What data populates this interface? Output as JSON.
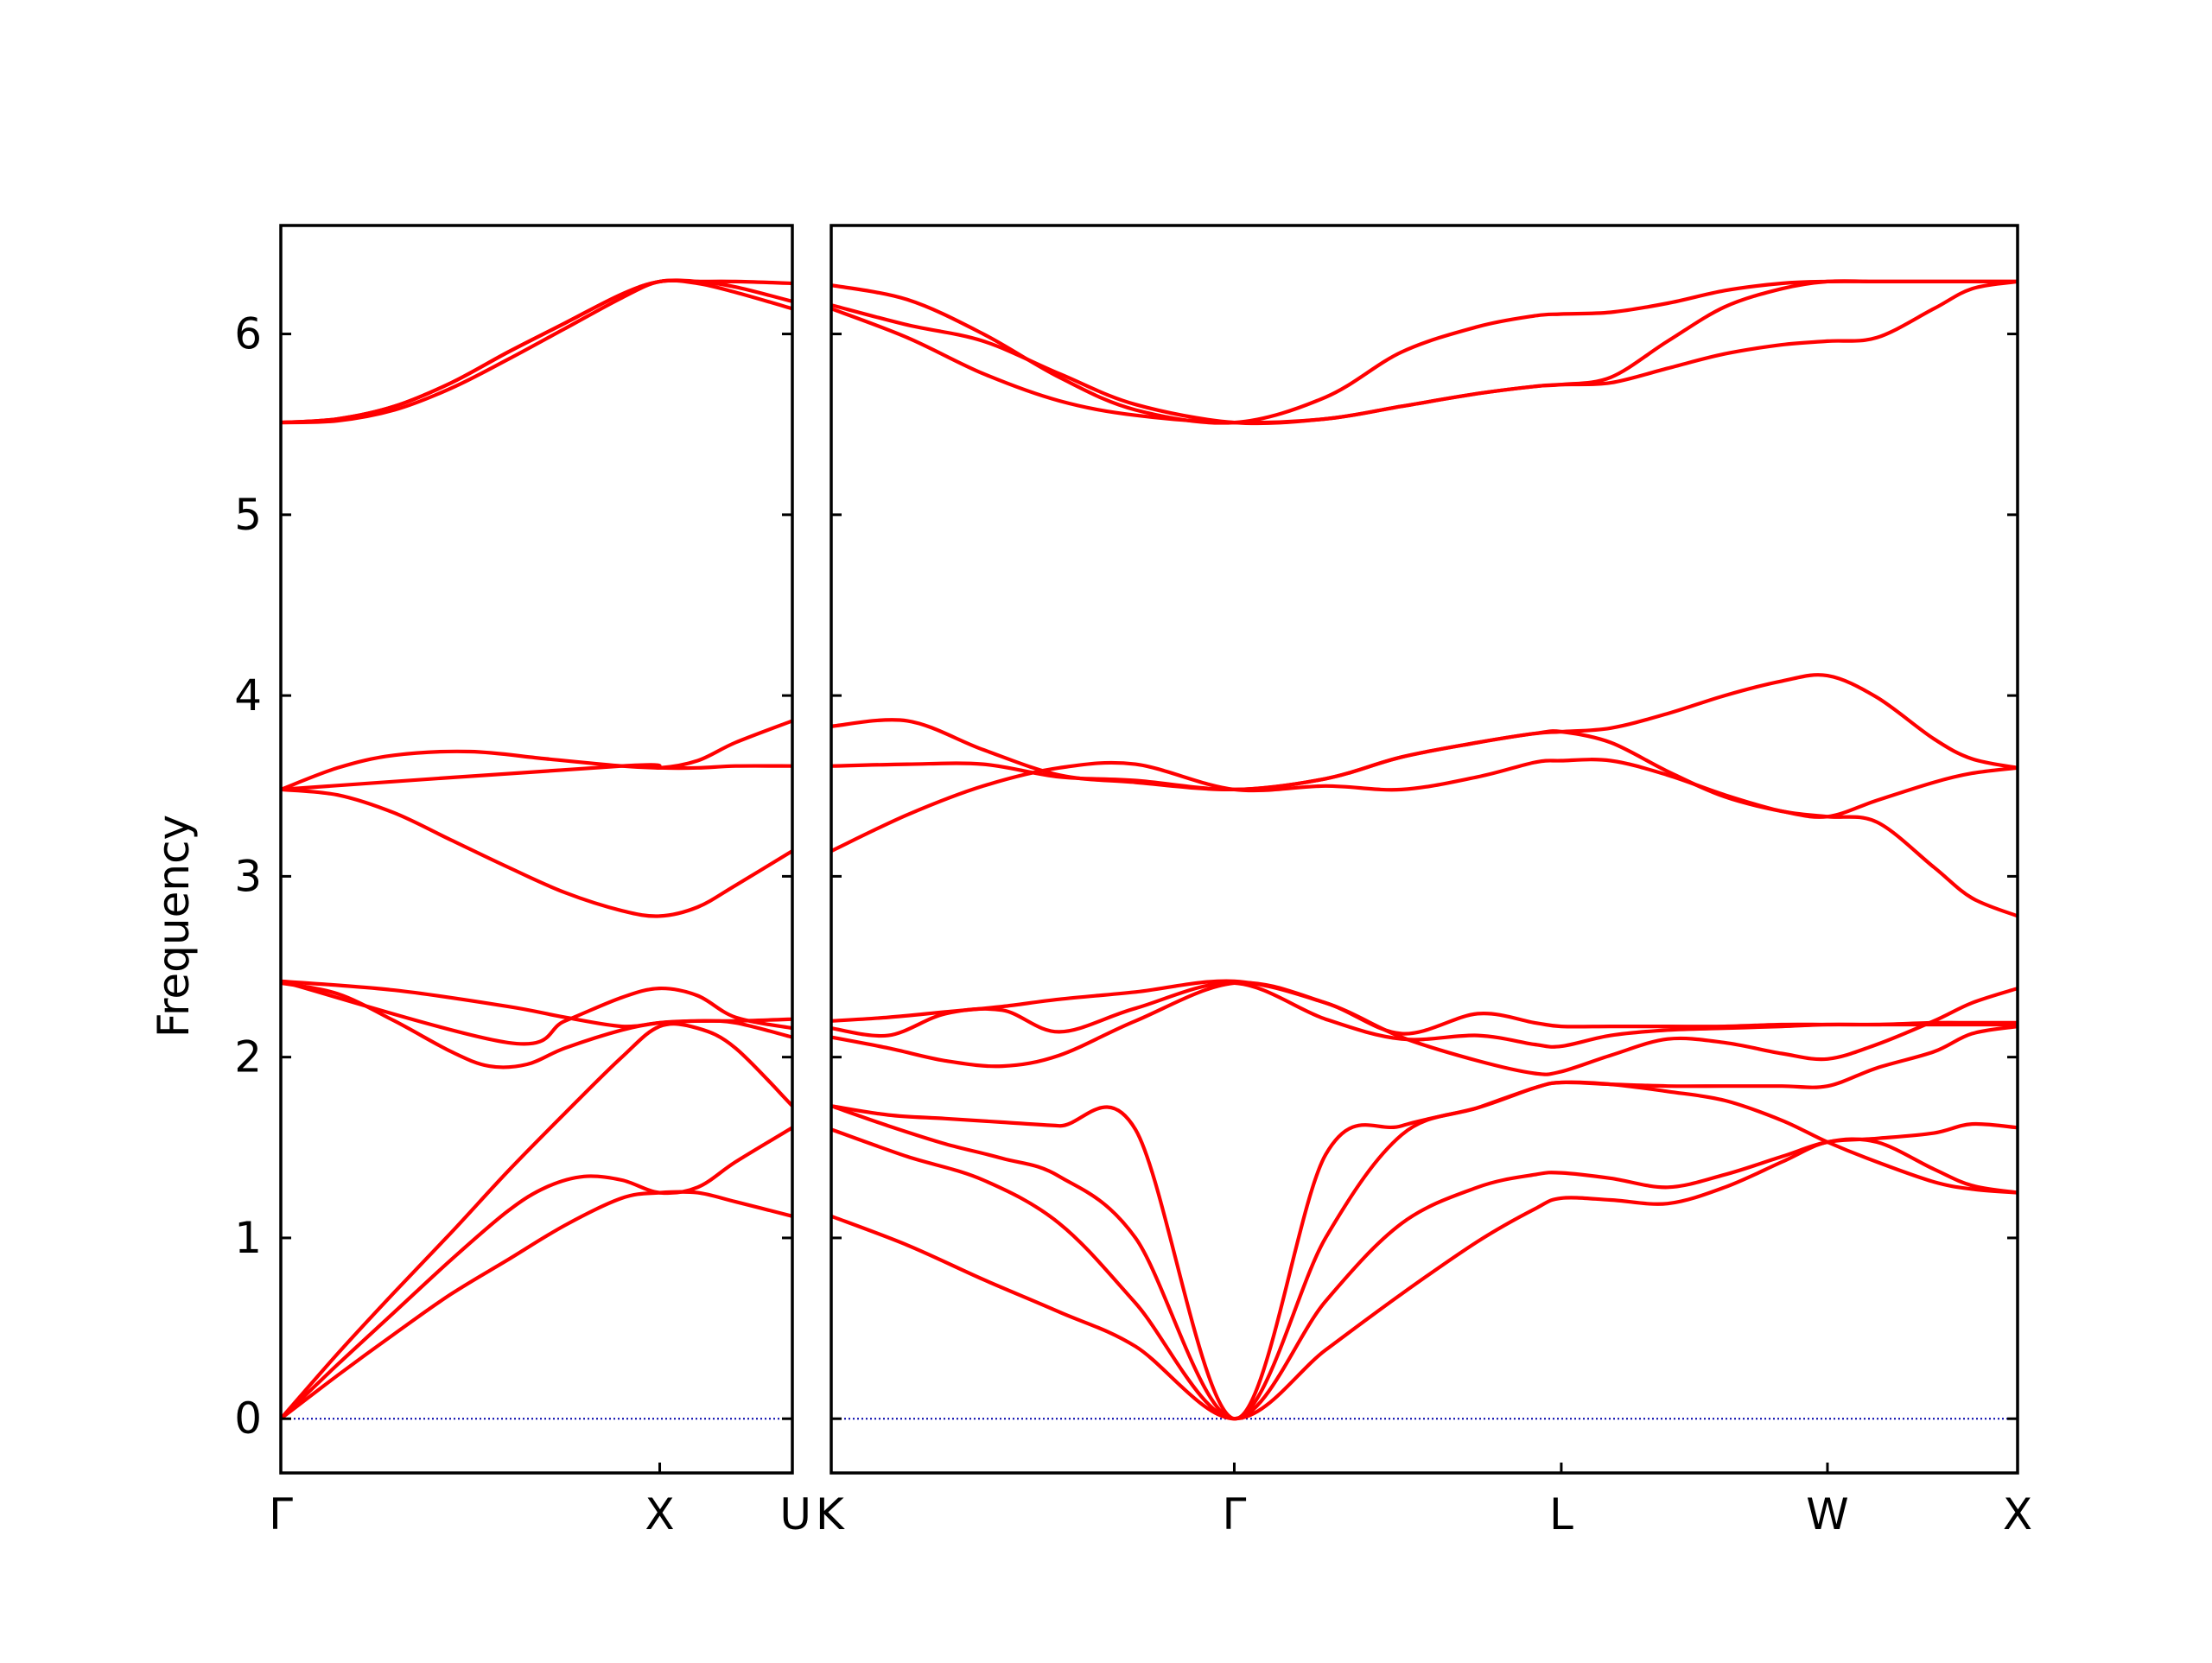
{
  "chart_data": {
    "type": "line",
    "title": "",
    "xlabel": "",
    "ylabel": "Frequency",
    "ylim": [
      -0.3,
      6.6
    ],
    "yticks": [
      0,
      1,
      2,
      3,
      4,
      5,
      6
    ],
    "grid": false,
    "line_color": "#ff0000",
    "zero_line_color": "#0000aa",
    "panels": [
      {
        "name": "Γ-X-U",
        "xlim": [
          0,
          1.35
        ],
        "x_ticks": [
          {
            "x": 0,
            "label": "Γ"
          },
          {
            "x": 1.0,
            "label": "X"
          },
          {
            "x": 1.35,
            "label": "U"
          }
        ],
        "bands": [
          {
            "x": [
              0,
              0.15,
              0.3,
              0.45,
              0.6,
              0.75,
              0.9,
              1.0,
              1.1,
              1.2,
              1.35
            ],
            "y": [
              0,
              0.24,
              0.47,
              0.69,
              0.88,
              1.07,
              1.22,
              1.25,
              1.25,
              1.2,
              1.12
            ]
          },
          {
            "x": [
              0,
              0.15,
              0.3,
              0.45,
              0.6,
              0.7,
              0.8,
              0.9,
              1.0,
              1.1,
              1.2,
              1.35
            ],
            "y": [
              0,
              0.3,
              0.59,
              0.88,
              1.15,
              1.28,
              1.34,
              1.32,
              1.25,
              1.28,
              1.42,
              1.61
            ]
          },
          {
            "x": [
              0,
              0.15,
              0.3,
              0.45,
              0.6,
              0.75,
              0.9,
              1.0,
              1.1,
              1.2,
              1.35
            ],
            "y": [
              0,
              0.36,
              0.7,
              1.03,
              1.37,
              1.69,
              2.0,
              2.17,
              2.16,
              2.05,
              1.73
            ]
          },
          {
            "x": [
              0,
              0.15,
              0.3,
              0.45,
              0.55,
              0.65,
              0.75,
              0.9,
              1.0,
              1.1,
              1.2,
              1.35
            ],
            "y": [
              2.41,
              2.35,
              2.2,
              2.03,
              1.95,
              1.96,
              2.05,
              2.15,
              2.19,
              2.2,
              2.2,
              2.21
            ]
          },
          {
            "x": [
              0,
              0.3,
              0.6,
              0.75,
              0.9,
              1.0,
              1.1,
              1.2,
              1.35
            ],
            "y": [
              2.42,
              2.37,
              2.28,
              2.22,
              2.17,
              2.19,
              2.2,
              2.19,
              2.11
            ]
          },
          {
            "x": [
              0,
              0.6,
              0.75,
              0.9,
              1.0,
              1.1,
              1.2,
              1.35
            ],
            "y": [
              2.42,
              2.08,
              2.2,
              2.33,
              2.38,
              2.34,
              2.22,
              2.16
            ]
          },
          {
            "x": [
              0,
              0.15,
              0.3,
              0.45,
              0.6,
              0.75,
              0.9,
              1.0,
              1.1,
              1.2,
              1.35
            ],
            "y": [
              3.48,
              3.45,
              3.35,
              3.2,
              3.05,
              2.91,
              2.81,
              2.78,
              2.83,
              2.95,
              3.14
            ]
          },
          {
            "x": [
              0,
              0.15,
              0.3,
              0.5,
              0.7,
              0.9,
              1.0,
              1.1,
              1.2,
              1.35
            ],
            "y": [
              3.48,
              3.6,
              3.67,
              3.69,
              3.65,
              3.61,
              3.6,
              3.6,
              3.61,
              3.61
            ]
          },
          {
            "x": [
              0,
              0.9,
              1.0,
              1.1,
              1.2,
              1.35
            ],
            "y": [
              3.48,
              3.61,
              3.6,
              3.64,
              3.74,
              3.86
            ]
          },
          {
            "x": [
              0,
              0.15,
              0.3,
              0.45,
              0.6,
              0.75,
              0.9,
              1.0,
              1.1,
              1.2,
              1.35
            ],
            "y": [
              5.51,
              5.52,
              5.58,
              5.7,
              5.86,
              6.03,
              6.2,
              6.29,
              6.28,
              6.23,
              6.14
            ]
          },
          {
            "x": [
              0,
              0.15,
              0.3,
              0.45,
              0.6,
              0.75,
              0.9,
              1.0,
              1.1,
              1.2,
              1.35
            ],
            "y": [
              5.51,
              5.53,
              5.6,
              5.73,
              5.9,
              6.06,
              6.22,
              6.29,
              6.29,
              6.26,
              6.18
            ]
          },
          {
            "x": [
              0,
              0.15,
              0.3,
              0.45,
              0.6,
              0.75,
              0.9,
              1.0,
              1.1,
              1.2,
              1.35
            ],
            "y": [
              5.51,
              5.53,
              5.6,
              5.73,
              5.9,
              6.06,
              6.22,
              6.29,
              6.29,
              6.29,
              6.28
            ]
          }
        ]
      },
      {
        "name": "K-Γ-L-W-X",
        "xlim": [
          0,
          3.12
        ],
        "x_ticks": [
          {
            "x": 0,
            "label": "K"
          },
          {
            "x": 1.06,
            "label": "Γ"
          },
          {
            "x": 1.92,
            "label": "L"
          },
          {
            "x": 2.62,
            "label": "W"
          },
          {
            "x": 3.12,
            "label": "X"
          }
        ],
        "bands": [
          {
            "x": [
              0,
              0.2,
              0.4,
              0.6,
              0.8,
              1.06,
              1.3,
              1.5,
              1.7,
              1.85,
              1.92,
              2.05,
              2.2,
              2.35,
              2.5,
              2.62,
              2.75,
              2.9,
              3.0,
              3.12
            ],
            "y": [
              1.12,
              0.96,
              0.77,
              0.59,
              0.4,
              0,
              0.38,
              0.69,
              0.98,
              1.16,
              1.22,
              1.21,
              1.19,
              1.28,
              1.42,
              1.53,
              1.53,
              1.38,
              1.29,
              1.25
            ]
          },
          {
            "x": [
              0,
              0.2,
              0.4,
              0.6,
              0.8,
              1.06,
              1.3,
              1.5,
              1.7,
              1.85,
              1.92,
              2.05,
              2.2,
              2.35,
              2.5,
              2.62,
              2.75,
              2.9,
              3.0,
              3.12
            ],
            "y": [
              1.6,
              1.45,
              1.32,
              1.08,
              0.64,
              0,
              0.65,
              1.08,
              1.28,
              1.35,
              1.36,
              1.33,
              1.28,
              1.35,
              1.45,
              1.53,
              1.55,
              1.58,
              1.63,
              1.61
            ]
          },
          {
            "x": [
              0,
              0.15,
              0.3,
              0.45,
              0.6,
              0.8,
              1.06,
              1.3,
              1.5,
              1.7,
              1.85,
              1.92,
              2.05,
              2.2,
              2.35,
              2.5,
              2.62,
              2.75,
              2.9,
              3.0,
              3.12
            ],
            "y": [
              1.73,
              1.62,
              1.52,
              1.44,
              1.34,
              1.0,
              0,
              1.0,
              1.57,
              1.72,
              1.83,
              1.86,
              1.85,
              1.81,
              1.76,
              1.65,
              1.53,
              1.42,
              1.31,
              1.27,
              1.25
            ]
          },
          {
            "x": [
              0,
              0.15,
              0.3,
              0.45,
              0.6,
              0.8,
              1.06,
              1.3,
              1.5,
              1.7,
              1.85,
              1.92,
              2.05,
              2.2,
              2.35,
              2.5,
              2.62,
              2.75,
              2.9,
              3.0,
              3.12
            ],
            "y": [
              1.73,
              1.68,
              1.66,
              1.64,
              1.62,
              1.6,
              0,
              1.46,
              1.62,
              1.72,
              1.83,
              1.86,
              1.85,
              1.84,
              1.84,
              1.84,
              1.84,
              1.94,
              2.03,
              2.13,
              2.17
            ]
          },
          {
            "x": [
              0,
              0.15,
              0.3,
              0.45,
              0.6,
              0.8,
              1.06,
              1.3,
              1.5,
              1.7,
              1.85,
              1.92,
              2.05,
              2.2,
              2.35,
              2.5,
              2.62,
              2.75,
              2.9,
              3.0,
              3.12
            ],
            "y": [
              2.11,
              2.05,
              1.98,
              1.95,
              2.01,
              2.2,
              2.41,
              2.3,
              2.11,
              1.98,
              1.91,
              1.92,
              2.01,
              2.1,
              2.08,
              2.02,
              1.99,
              2.07,
              2.2,
              2.3,
              2.38
            ]
          },
          {
            "x": [
              0,
              0.15,
              0.3,
              0.45,
              0.6,
              0.8,
              1.06,
              1.3,
              1.5,
              1.7,
              1.85,
              1.92,
              2.05,
              2.2,
              2.35,
              2.5,
              2.62,
              2.75,
              2.9,
              3.0,
              3.12
            ],
            "y": [
              2.16,
              2.12,
              2.24,
              2.26,
              2.14,
              2.27,
              2.41,
              2.21,
              2.1,
              2.12,
              2.07,
              2.06,
              2.12,
              2.15,
              2.16,
              2.17,
              2.18,
              2.18,
              2.19,
              2.19,
              2.19
            ]
          },
          {
            "x": [
              0,
              0.15,
              0.3,
              0.45,
              0.6,
              0.8,
              1.06,
              1.3,
              1.5,
              1.7,
              1.85,
              1.92,
              2.05,
              2.2,
              2.35,
              2.5,
              2.62,
              2.75,
              2.9,
              3.0,
              3.12
            ],
            "y": [
              2.2,
              2.22,
              2.25,
              2.28,
              2.32,
              2.36,
              2.42,
              2.3,
              2.13,
              2.24,
              2.19,
              2.17,
              2.17,
              2.17,
              2.17,
              2.18,
              2.18,
              2.18,
              2.18,
              2.18,
              2.18
            ]
          },
          {
            "x": [
              0,
              0.2,
              0.4,
              0.6,
              0.8,
              1.06,
              1.3,
              1.5,
              1.7,
              1.85,
              1.92,
              2.05,
              2.2,
              2.35,
              2.5,
              2.62,
              2.75,
              2.9,
              3.0,
              3.12
            ],
            "y": [
              3.14,
              3.34,
              3.5,
              3.6,
              3.62,
              3.48,
              3.5,
              3.48,
              3.55,
              3.63,
              3.64,
              3.64,
              3.56,
              3.45,
              3.36,
              3.33,
              3.3,
              3.05,
              2.88,
              2.78
            ]
          },
          {
            "x": [
              0,
              0.2,
              0.4,
              0.6,
              0.8,
              1.06,
              1.3,
              1.5,
              1.7,
              1.85,
              1.92,
              2.05,
              2.2,
              2.35,
              2.5,
              2.62,
              2.75,
              2.9,
              3.0,
              3.12
            ],
            "y": [
              3.61,
              3.62,
              3.62,
              3.55,
              3.53,
              3.48,
              3.54,
              3.66,
              3.74,
              3.79,
              3.8,
              3.74,
              3.58,
              3.44,
              3.36,
              3.33,
              3.42,
              3.52,
              3.57,
              3.6
            ]
          },
          {
            "x": [
              0,
              0.2,
              0.4,
              0.6,
              0.8,
              1.06,
              1.3,
              1.5,
              1.7,
              1.85,
              1.92,
              2.05,
              2.2,
              2.35,
              2.5,
              2.62,
              2.75,
              2.9,
              3.0,
              3.12
            ],
            "y": [
              3.83,
              3.86,
              3.7,
              3.56,
              3.52,
              3.48,
              3.54,
              3.66,
              3.74,
              3.79,
              3.8,
              3.82,
              3.9,
              4.0,
              4.08,
              4.11,
              3.99,
              3.76,
              3.65,
              3.6
            ]
          },
          {
            "x": [
              0,
              0.2,
              0.4,
              0.6,
              0.8,
              1.06,
              1.3,
              1.5,
              1.7,
              1.85,
              1.92,
              2.05,
              2.2,
              2.35,
              2.5,
              2.62,
              2.75,
              2.9,
              3.0,
              3.12
            ],
            "y": [
              6.14,
              5.98,
              5.78,
              5.63,
              5.55,
              5.51,
              5.53,
              5.6,
              5.67,
              5.71,
              5.72,
              5.73,
              5.81,
              5.89,
              5.94,
              5.96,
              5.98,
              6.14,
              6.25,
              6.29
            ]
          },
          {
            "x": [
              0,
              0.2,
              0.4,
              0.6,
              0.8,
              1.06,
              1.3,
              1.5,
              1.7,
              1.85,
              1.92,
              2.05,
              2.2,
              2.35,
              2.5,
              2.62,
              2.75,
              2.9,
              3.0,
              3.12
            ],
            "y": [
              6.16,
              6.05,
              5.96,
              5.78,
              5.61,
              5.51,
              5.53,
              5.6,
              5.67,
              5.71,
              5.72,
              5.76,
              5.96,
              6.15,
              6.25,
              6.29,
              6.29,
              6.29,
              6.29,
              6.29
            ]
          },
          {
            "x": [
              0,
              0.2,
              0.4,
              0.6,
              0.8,
              1.06,
              1.3,
              1.5,
              1.7,
              1.85,
              1.92,
              2.05,
              2.2,
              2.35,
              2.5,
              2.62,
              2.75,
              2.9,
              3.0,
              3.12
            ],
            "y": [
              6.27,
              6.19,
              6.0,
              5.76,
              5.58,
              5.51,
              5.65,
              5.9,
              6.04,
              6.1,
              6.11,
              6.12,
              6.17,
              6.24,
              6.28,
              6.29,
              6.29,
              6.29,
              6.29,
              6.29
            ]
          }
        ]
      }
    ]
  }
}
